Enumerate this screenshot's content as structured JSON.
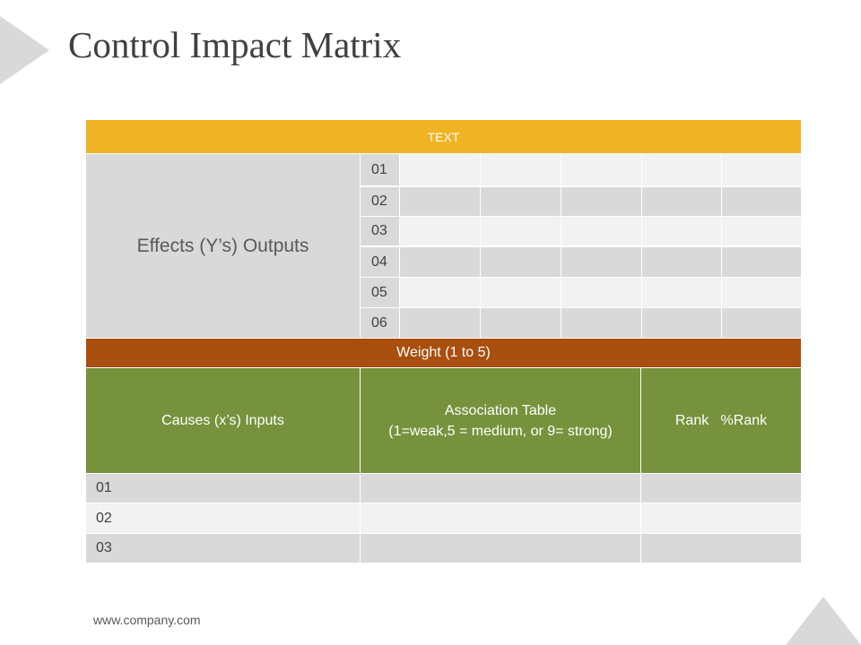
{
  "slide": {
    "title": "Control Impact Matrix",
    "footer": "www.company.com"
  },
  "matrix": {
    "header_text": "TEXT",
    "effects_label": "Effects (Y’s) Outputs",
    "effect_rows": [
      "01",
      "02",
      "03",
      "04",
      "05",
      "06"
    ],
    "weight_label": "Weight (1 to 5)",
    "causes_label": "Causes (x’s) Inputs",
    "association_line1": "Association Table",
    "association_line2": "(1=weak,5 = medium, or 9= strong)",
    "rank_label": "Rank   %Rank",
    "cause_rows": [
      "01",
      "02",
      "03"
    ]
  },
  "colors": {
    "header": "#f0b323",
    "weight": "#a84f0f",
    "green": "#76923c",
    "light_gray": "#f2f2f2",
    "mid_gray": "#d9d9d9"
  }
}
